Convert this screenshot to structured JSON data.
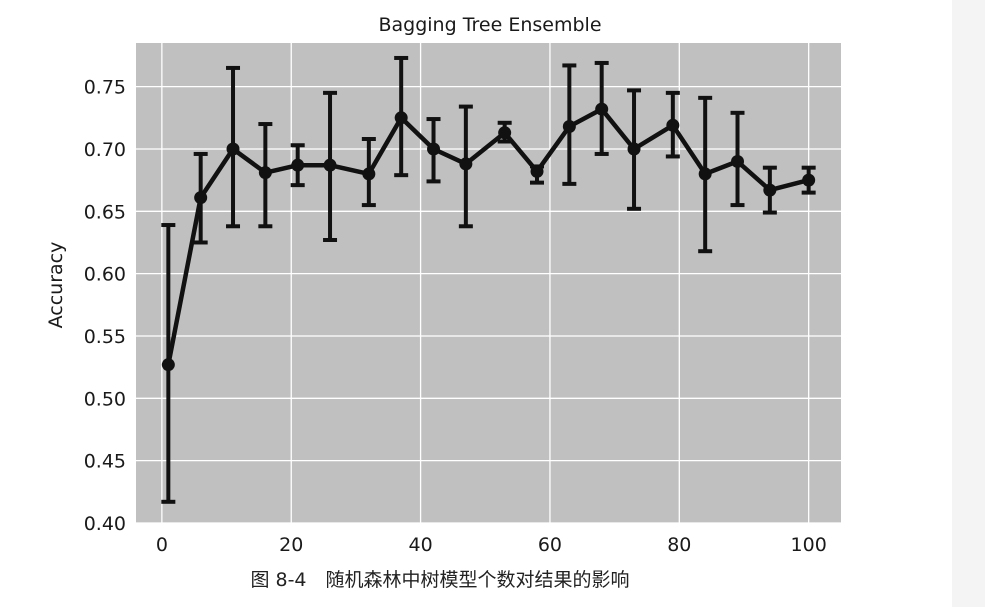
{
  "caption": "图 8-4　随机森林中树模型个数对结果的影响",
  "chart_data": {
    "type": "line",
    "title": "Bagging Tree Ensemble",
    "xlabel": "",
    "ylabel": "Accuracy",
    "xlim": [
      -4,
      105
    ],
    "ylim": [
      0.4,
      0.785
    ],
    "xticks": [
      0,
      20,
      40,
      60,
      80,
      100
    ],
    "xtick_labels": [
      "0",
      "20",
      "40",
      "60",
      "80",
      "100"
    ],
    "yticks": [
      0.4,
      0.45,
      0.5,
      0.55,
      0.6,
      0.65,
      0.7,
      0.75
    ],
    "ytick_labels": [
      "0.40",
      "0.45",
      "0.50",
      "0.55",
      "0.60",
      "0.65",
      "0.70",
      "0.75"
    ],
    "grid": true,
    "background": "#c0c0c0",
    "line_color": "#111111",
    "series": [
      {
        "x": [
          1,
          6,
          11,
          16,
          21,
          26,
          32,
          37,
          42,
          47,
          53,
          58,
          63,
          68,
          73,
          79,
          84,
          89,
          94,
          100
        ],
        "values": [
          0.527,
          0.661,
          0.7,
          0.681,
          0.687,
          0.687,
          0.68,
          0.725,
          0.7,
          0.688,
          0.713,
          0.682,
          0.718,
          0.732,
          0.7,
          0.719,
          0.68,
          0.69,
          0.667,
          0.675
        ],
        "err_low": [
          0.417,
          0.625,
          0.638,
          0.638,
          0.671,
          0.627,
          0.655,
          0.679,
          0.674,
          0.638,
          0.706,
          0.673,
          0.672,
          0.696,
          0.652,
          0.694,
          0.618,
          0.655,
          0.649,
          0.665
        ],
        "err_high": [
          0.639,
          0.696,
          0.765,
          0.72,
          0.703,
          0.745,
          0.708,
          0.773,
          0.724,
          0.734,
          0.721,
          0.686,
          0.767,
          0.769,
          0.747,
          0.745,
          0.741,
          0.729,
          0.685,
          0.685
        ]
      }
    ]
  }
}
